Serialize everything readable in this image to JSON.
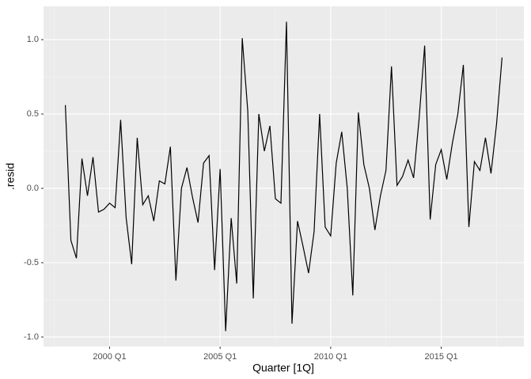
{
  "chart_data": {
    "type": "line",
    "x_label": "Quarter [1Q]",
    "y_label": ".resid",
    "x": [
      "1998 Q1",
      "1998 Q2",
      "1998 Q3",
      "1998 Q4",
      "1999 Q1",
      "1999 Q2",
      "1999 Q3",
      "1999 Q4",
      "2000 Q1",
      "2000 Q2",
      "2000 Q3",
      "2000 Q4",
      "2001 Q1",
      "2001 Q2",
      "2001 Q3",
      "2001 Q4",
      "2002 Q1",
      "2002 Q2",
      "2002 Q3",
      "2002 Q4",
      "2003 Q1",
      "2003 Q2",
      "2003 Q3",
      "2003 Q4",
      "2004 Q1",
      "2004 Q2",
      "2004 Q3",
      "2004 Q4",
      "2005 Q1",
      "2005 Q2",
      "2005 Q3",
      "2005 Q4",
      "2006 Q1",
      "2006 Q2",
      "2006 Q3",
      "2006 Q4",
      "2007 Q1",
      "2007 Q2",
      "2007 Q3",
      "2007 Q4",
      "2008 Q1",
      "2008 Q2",
      "2008 Q3",
      "2008 Q4",
      "2009 Q1",
      "2009 Q2",
      "2009 Q3",
      "2009 Q4",
      "2010 Q1",
      "2010 Q2",
      "2010 Q3",
      "2010 Q4",
      "2011 Q1",
      "2011 Q2",
      "2011 Q3",
      "2011 Q4",
      "2012 Q1",
      "2012 Q2",
      "2012 Q3",
      "2012 Q4",
      "2013 Q1",
      "2013 Q2",
      "2013 Q3",
      "2013 Q4",
      "2014 Q1",
      "2014 Q2",
      "2014 Q3",
      "2014 Q4",
      "2015 Q1",
      "2015 Q2",
      "2015 Q3",
      "2015 Q4",
      "2016 Q1",
      "2016 Q2",
      "2016 Q3",
      "2016 Q4",
      "2017 Q1",
      "2017 Q2",
      "2017 Q3",
      "2017 Q4"
    ],
    "values": [
      0.56,
      -0.35,
      -0.47,
      0.2,
      -0.05,
      0.21,
      -0.16,
      -0.14,
      -0.1,
      -0.13,
      0.46,
      -0.2,
      -0.51,
      0.34,
      -0.11,
      -0.05,
      -0.22,
      0.05,
      0.03,
      0.28,
      -0.62,
      0.0,
      0.14,
      -0.06,
      -0.23,
      0.17,
      0.22,
      -0.55,
      0.13,
      -0.96,
      -0.2,
      -0.64,
      1.01,
      0.52,
      -0.74,
      0.5,
      0.25,
      0.42,
      -0.07,
      -0.1,
      1.12,
      -0.91,
      -0.22,
      -0.39,
      -0.57,
      -0.29,
      0.5,
      -0.26,
      -0.32,
      0.17,
      0.38,
      0.0,
      -0.72,
      0.51,
      0.16,
      0.0,
      -0.28,
      -0.05,
      0.12,
      0.82,
      0.02,
      0.08,
      0.19,
      0.07,
      0.47,
      0.96,
      -0.21,
      0.16,
      0.26,
      0.06,
      0.3,
      0.5,
      0.83,
      -0.26,
      0.18,
      0.12,
      0.34,
      0.1,
      0.43,
      0.88
    ],
    "color": "#000000",
    "xticks": [
      "2000 Q1",
      "2005 Q1",
      "2010 Q1",
      "2015 Q1"
    ],
    "xminorticks": [
      "1997 Q3",
      "2002 Q3",
      "2007 Q3",
      "2012 Q3",
      "2017 Q3"
    ],
    "ylim": [
      -1.064,
      1.224
    ],
    "yticks": [
      {
        "value": -1.0,
        "label": "-1.0"
      },
      {
        "value": -0.5,
        "label": "-0.5"
      },
      {
        "value": 0.0,
        "label": "0.0"
      },
      {
        "value": 0.5,
        "label": "0.5"
      },
      {
        "value": 1.0,
        "label": "1.0"
      }
    ],
    "yminorticks": [
      -0.75,
      -0.25,
      0.25,
      0.75
    ],
    "grid": true
  }
}
